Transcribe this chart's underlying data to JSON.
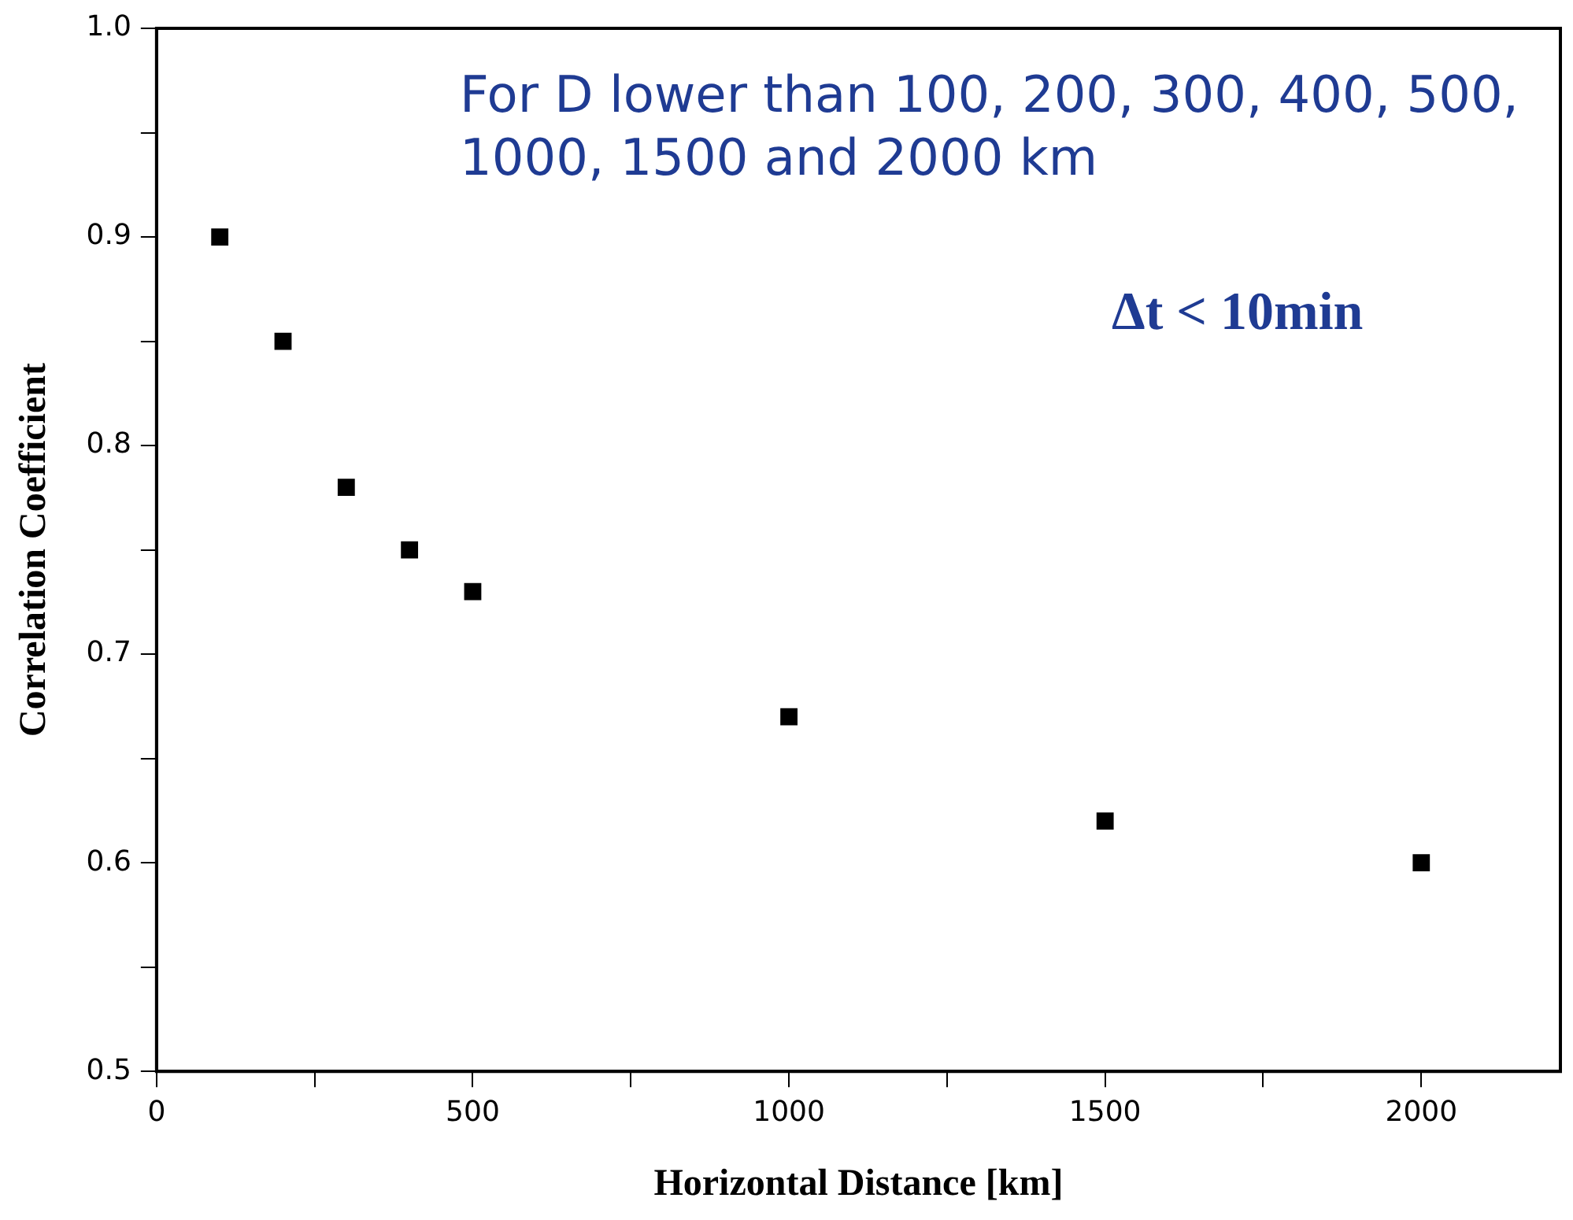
{
  "chart_data": {
    "type": "scatter",
    "xlabel": "Horizontal Distance [km]",
    "ylabel": "Correlation Coefficient",
    "x": [
      100,
      200,
      300,
      400,
      500,
      1000,
      1500,
      2000
    ],
    "values": [
      0.9,
      0.85,
      0.78,
      0.75,
      0.73,
      0.67,
      0.62,
      0.6
    ],
    "color": "#000000",
    "marker": "square",
    "grid": false,
    "legend": false,
    "xlim": [
      0,
      2220
    ],
    "xticks": [
      0,
      {
        "value": 250,
        "label": null
      },
      500,
      {
        "value": 750,
        "label": null
      },
      1000,
      {
        "value": 1250,
        "label": null
      },
      1500,
      {
        "value": 1750,
        "label": null
      },
      2000
    ],
    "ylim": [
      0.5,
      1.0
    ],
    "yticks": [
      0.5,
      {
        "value": 0.55,
        "label": null
      },
      0.6,
      {
        "value": 0.65,
        "label": null
      },
      0.7,
      {
        "value": 0.75,
        "label": null
      },
      0.8,
      {
        "value": 0.85,
        "label": null
      },
      0.9,
      {
        "value": 0.95,
        "label": null
      },
      {
        "value": 1,
        "label": "1.0"
      }
    ],
    "annotations": [
      "For D lower than 100, 200, 300, 400, 500, 1000, 1500 and 2000 km",
      "Δt < 10min"
    ]
  }
}
